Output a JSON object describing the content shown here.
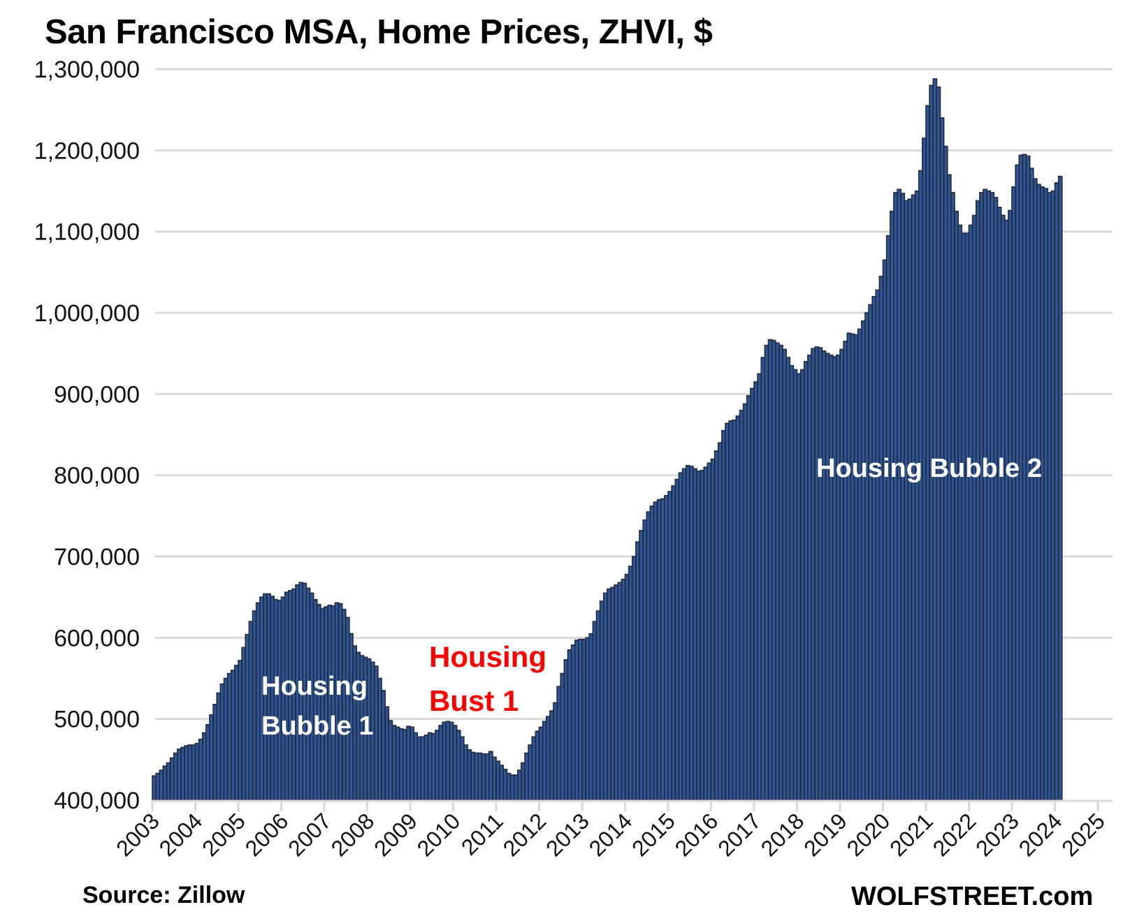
{
  "chart_data": {
    "type": "bar",
    "title": "San Francisco MSA, Home Prices, ZHVI, $",
    "xlabel": "",
    "ylabel": "",
    "ylim": [
      400000,
      1300000
    ],
    "grid": true,
    "frequency": "monthly",
    "start_year": 2003,
    "y_ticks": [
      "400,000",
      "500,000",
      "600,000",
      "700,000",
      "800,000",
      "900,000",
      "1,000,000",
      "1,100,000",
      "1,200,000",
      "1,300,000"
    ],
    "y_tick_values": [
      400000,
      500000,
      600000,
      700000,
      800000,
      900000,
      1000000,
      1100000,
      1200000,
      1300000
    ],
    "x_ticks": [
      "2003",
      "2004",
      "2005",
      "2006",
      "2007",
      "2008",
      "2009",
      "2010",
      "2011",
      "2012",
      "2013",
      "2014",
      "2015",
      "2016",
      "2017",
      "2018",
      "2019",
      "2020",
      "2021",
      "2022",
      "2023",
      "2024",
      "2025"
    ],
    "series": [
      {
        "name": "ZHVI",
        "color": "#2F5597",
        "values": [
          430000,
          433000,
          437000,
          442000,
          446000,
          452000,
          458000,
          463000,
          465000,
          467000,
          468000,
          468000,
          470000,
          475000,
          483000,
          493000,
          505000,
          518000,
          532000,
          543000,
          550000,
          556000,
          560000,
          566000,
          572000,
          588000,
          604000,
          620000,
          633000,
          643000,
          650000,
          654000,
          654000,
          651000,
          647000,
          646000,
          650000,
          656000,
          658000,
          660000,
          665000,
          668000,
          667000,
          661000,
          655000,
          647000,
          641000,
          636000,
          638000,
          640000,
          639000,
          643000,
          642000,
          635000,
          625000,
          605000,
          590000,
          582000,
          578000,
          576000,
          574000,
          570000,
          565000,
          550000,
          535000,
          515000,
          498000,
          492000,
          490000,
          488000,
          487000,
          491000,
          490000,
          483000,
          478000,
          478000,
          480000,
          483000,
          482000,
          486000,
          492000,
          496000,
          497000,
          496000,
          492000,
          486000,
          478000,
          468000,
          462000,
          459000,
          458000,
          458000,
          457000,
          457000,
          460000,
          453000,
          448000,
          443000,
          438000,
          433000,
          431000,
          431000,
          437000,
          446000,
          458000,
          468000,
          478000,
          485000,
          490000,
          497000,
          503000,
          510000,
          520000,
          540000,
          556000,
          573000,
          585000,
          591000,
          597000,
          598000,
          598000,
          600000,
          605000,
          620000,
          633000,
          645000,
          655000,
          660000,
          662000,
          665000,
          668000,
          672000,
          678000,
          688000,
          700000,
          718000,
          732000,
          745000,
          755000,
          762000,
          767000,
          770000,
          771000,
          775000,
          780000,
          787000,
          795000,
          803000,
          808000,
          812000,
          811000,
          808000,
          805000,
          806000,
          810000,
          815000,
          820000,
          830000,
          840000,
          855000,
          864000,
          867000,
          868000,
          873000,
          880000,
          888000,
          898000,
          907000,
          915000,
          925000,
          945000,
          960000,
          967000,
          966000,
          963000,
          960000,
          955000,
          945000,
          935000,
          930000,
          925000,
          930000,
          940000,
          948000,
          956000,
          958000,
          957000,
          953000,
          950000,
          948000,
          946000,
          948000,
          955000,
          965000,
          975000,
          974000,
          973000,
          980000,
          990000,
          1000000,
          1010000,
          1020000,
          1028000,
          1045000,
          1065000,
          1095000,
          1125000,
          1148000,
          1152000,
          1147000,
          1138000,
          1140000,
          1145000,
          1150000,
          1175000,
          1215000,
          1255000,
          1280000,
          1288000,
          1278000,
          1240000,
          1205000,
          1170000,
          1148000,
          1125000,
          1108000,
          1098000,
          1098000,
          1108000,
          1120000,
          1138000,
          1148000,
          1152000,
          1150000,
          1148000,
          1142000,
          1130000,
          1120000,
          1114000,
          1126000,
          1155000,
          1182000,
          1194000,
          1195000,
          1193000,
          1178000,
          1165000,
          1158000,
          1155000,
          1153000,
          1148000,
          1150000,
          1160000,
          1168000
        ]
      }
    ],
    "annotations": [
      {
        "text_lines": [
          "Housing",
          "Bubble 1"
        ],
        "color": "#FFFFFF"
      },
      {
        "text_lines": [
          "Housing",
          "Bust 1"
        ],
        "color": "#FF0000"
      },
      {
        "text_lines": [
          "Housing Bubble 2"
        ],
        "color": "#FFFFFF"
      }
    ],
    "source": "Source: Zillow",
    "credit": "WOLFSTREET.com"
  }
}
